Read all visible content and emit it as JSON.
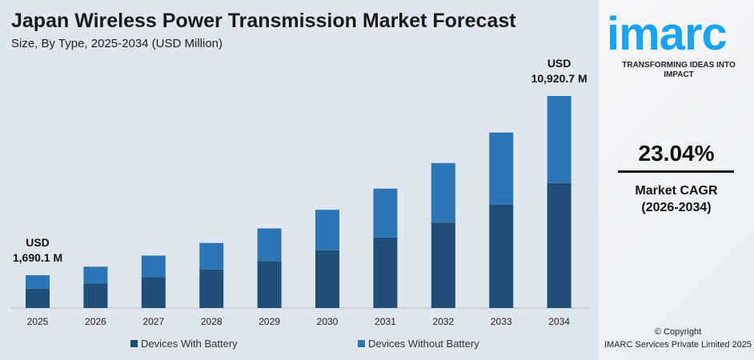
{
  "title": "Japan Wireless Power Transmission Market Forecast",
  "subtitle": "Size, By Type, 2025-2034 (USD Million)",
  "brand": {
    "name": "imarc",
    "tagline": "TRANSFORMING IDEAS INTO IMPACT",
    "color": "#1aa3f0"
  },
  "cagr": {
    "value": "23.04%",
    "label": "Market CAGR",
    "period": "(2026-2034)"
  },
  "copyright": {
    "line1": "© Copyright",
    "line2": "IMARC Services Private Limited 2025"
  },
  "chart_data": {
    "type": "bar",
    "stacked": true,
    "categories": [
      "2025",
      "2026",
      "2027",
      "2028",
      "2029",
      "2030",
      "2031",
      "2032",
      "2033",
      "2034"
    ],
    "series": [
      {
        "name": "Devices With Battery",
        "color": "#1f4e79",
        "values": [
          1000,
          1260,
          1590,
          1980,
          2420,
          2980,
          3630,
          4400,
          5330,
          6440
        ]
      },
      {
        "name": "Devices Without Battery",
        "color": "#2e75b6",
        "values": [
          690.1,
          870,
          1110,
          1370,
          1680,
          2080,
          2520,
          3070,
          3710,
          4480.7
        ]
      }
    ],
    "annotations": [
      {
        "category": "2025",
        "line1": "USD",
        "line2": "1,690.1 M"
      },
      {
        "category": "2034",
        "line1": "USD",
        "line2": "10,920.7 M"
      }
    ],
    "legend": "bottom",
    "grid": false
  }
}
